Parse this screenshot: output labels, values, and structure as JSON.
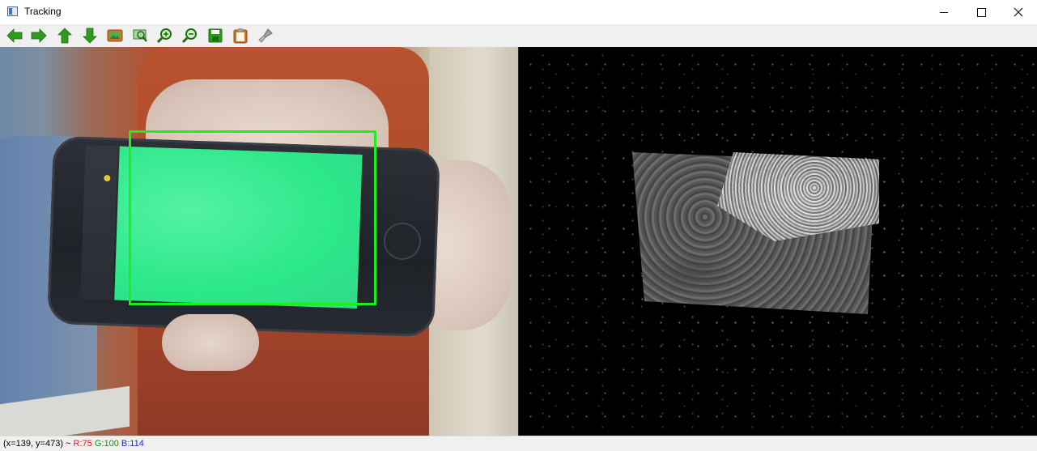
{
  "window": {
    "title": "Tracking",
    "controls": {
      "minimize": "minimize",
      "maximize": "maximize",
      "close": "close"
    }
  },
  "toolbar": {
    "buttons": [
      {
        "name": "pan-left",
        "icon": "arrow-left-icon"
      },
      {
        "name": "pan-right",
        "icon": "arrow-right-icon"
      },
      {
        "name": "pan-up",
        "icon": "arrow-up-icon"
      },
      {
        "name": "pan-down",
        "icon": "arrow-down-icon"
      },
      {
        "name": "zoom-fit",
        "icon": "image-fit-icon"
      },
      {
        "name": "zoom-original",
        "icon": "zoom-original-icon"
      },
      {
        "name": "zoom-in",
        "icon": "zoom-in-icon"
      },
      {
        "name": "zoom-out",
        "icon": "zoom-out-icon"
      },
      {
        "name": "save",
        "icon": "save-icon"
      },
      {
        "name": "copy-clipboard",
        "icon": "clipboard-icon"
      },
      {
        "name": "properties",
        "icon": "brush-icon"
      }
    ]
  },
  "colors": {
    "arrow_green": "#2e9b1f",
    "tracking_box": "#1cf01c"
  },
  "status": {
    "coords": "(x=139, y=473) ~",
    "r": "R:75",
    "g": "G:100",
    "b": "B:114"
  }
}
